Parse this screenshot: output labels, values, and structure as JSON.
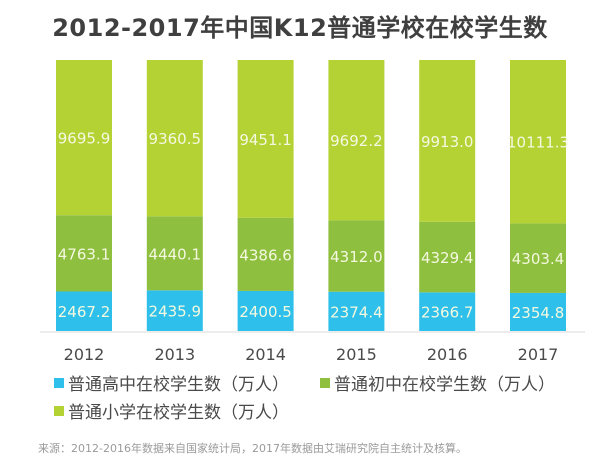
{
  "chart_data": {
    "type": "bar",
    "stacked": true,
    "normalized": true,
    "title": "2012-2017年中国K12普通学校在校学生数",
    "categories": [
      "2012",
      "2013",
      "2014",
      "2015",
      "2016",
      "2017"
    ],
    "series": [
      {
        "name": "普通高中在校学生数（万人）",
        "color": "#2ec0ea",
        "values": [
          2467.2,
          2435.9,
          2400.5,
          2374.4,
          2366.7,
          2354.8
        ]
      },
      {
        "name": "普通初中在校学生数（万人）",
        "color": "#8fbf3f",
        "values": [
          4763.1,
          4440.1,
          4386.6,
          4312.0,
          4329.4,
          4303.4
        ]
      },
      {
        "name": "普通小学在校学生数（万人）",
        "color": "#b4d234",
        "values": [
          9695.9,
          9360.5,
          9451.1,
          9692.2,
          9913.0,
          10111.3
        ]
      }
    ],
    "grid": false,
    "legend": "bottom",
    "source": "来源：2012-2016年数据来自国家统计局，2017年数据由艾瑞研究院自主统计及核算。"
  }
}
